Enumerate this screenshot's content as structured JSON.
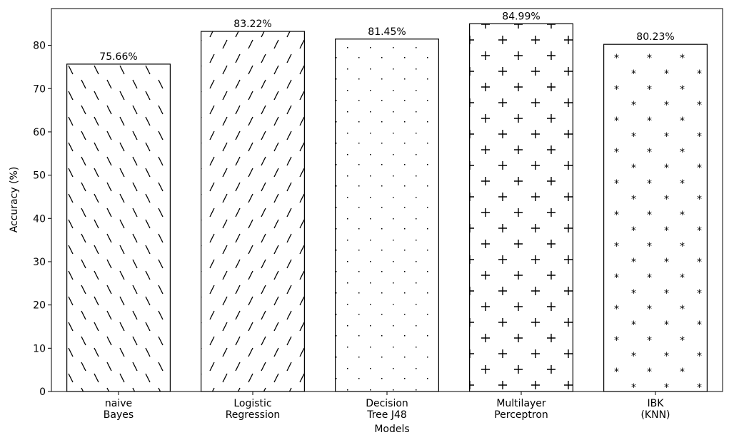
{
  "chart_data": {
    "type": "bar",
    "categories": [
      "naive\nBayes",
      "Logistic\nRegression",
      "Decision\nTree J48",
      "Multilayer\nPerceptron",
      "IBK\n(KNN)"
    ],
    "series": [
      {
        "values": [
          75.66,
          83.22,
          81.45,
          84.99,
          80.23
        ],
        "labels": [
          "75.66%",
          "83.22%",
          "81.45%",
          "84.99%",
          "80.23%"
        ],
        "hatches": [
          "\\",
          "/",
          ".",
          "+",
          "*"
        ]
      }
    ],
    "xlabel": "Models",
    "ylabel": "Accuracy (%)",
    "ylim": [
      0,
      88.5
    ],
    "yticks": [
      0,
      10,
      20,
      30,
      40,
      50,
      60,
      70,
      80
    ],
    "bar_fill": "#ffffff",
    "bar_edge": "#000000",
    "grid": false,
    "legend": "none"
  }
}
